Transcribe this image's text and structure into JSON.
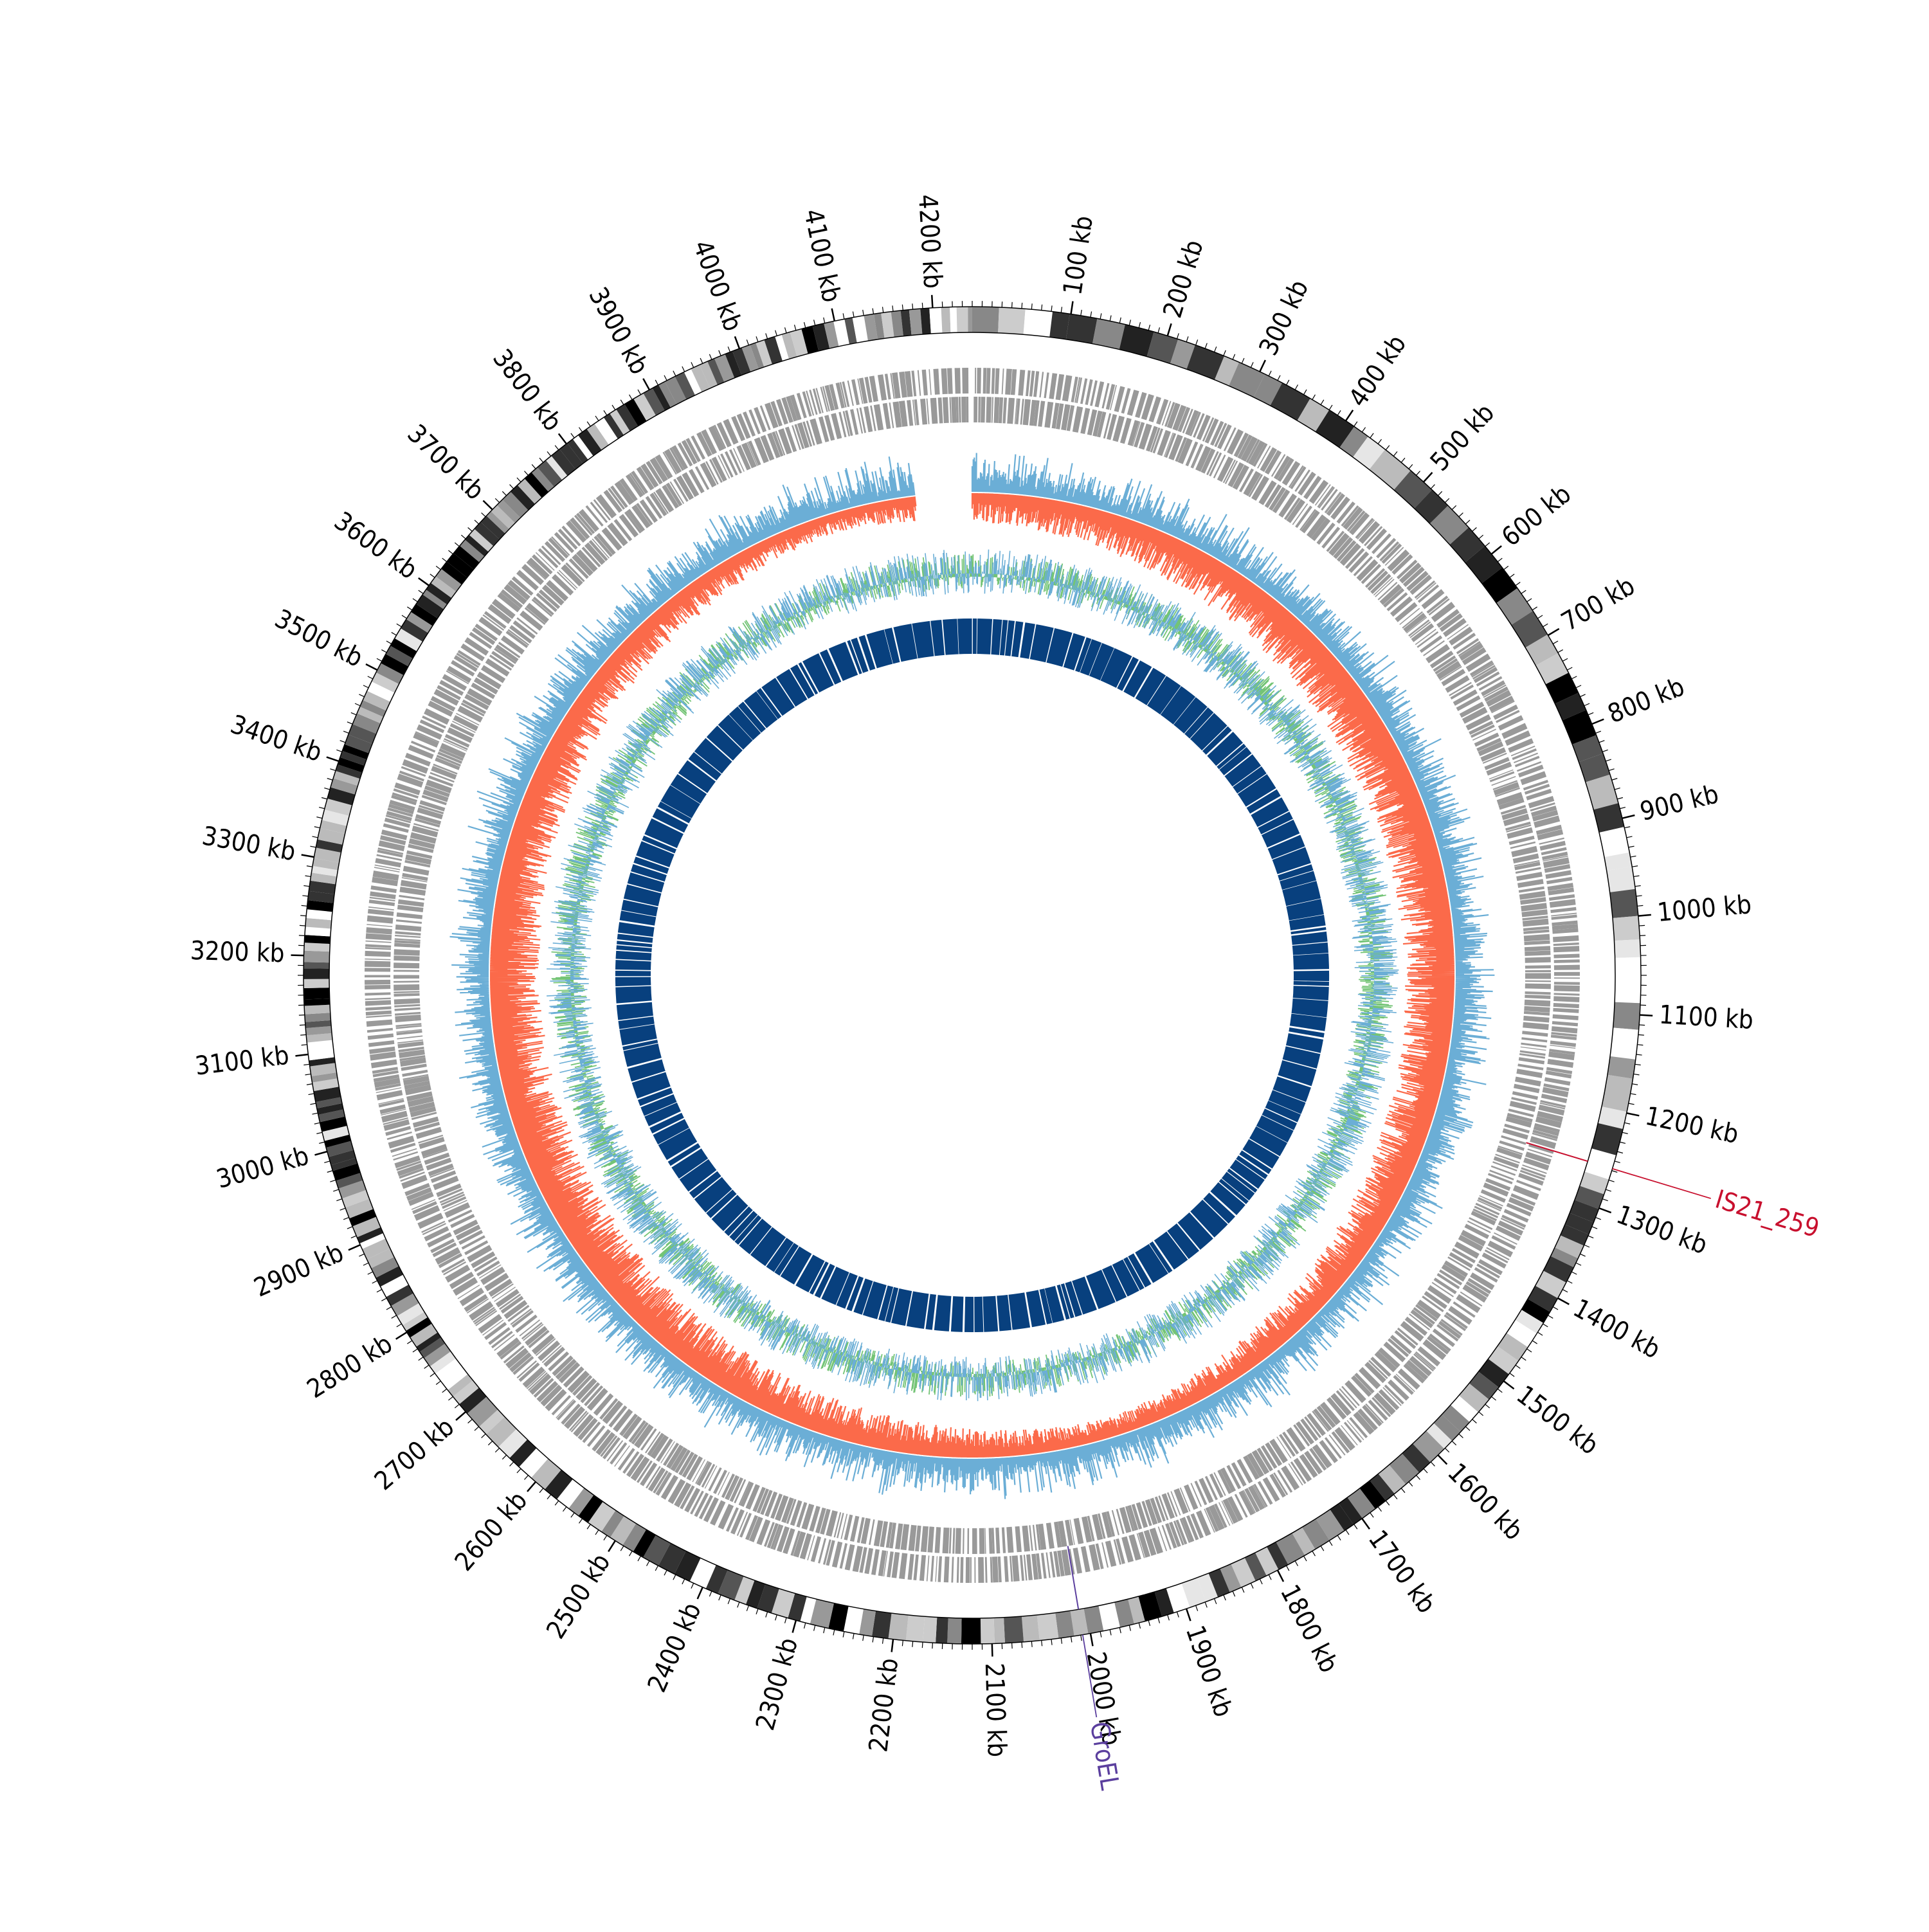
{
  "genome": {
    "size_kb": 4240,
    "tick_unit": "kb",
    "tick_labels": [
      "100 kb",
      "200 kb",
      "300 kb",
      "400 kb",
      "500 kb",
      "600 kb",
      "700 kb",
      "800 kb",
      "900 kb",
      "1000 kb",
      "1100 kb",
      "1200 kb",
      "1300 kb",
      "1400 kb",
      "1500 kb",
      "1600 kb",
      "1700 kb",
      "1800 kb",
      "1900 kb",
      "2000 kb",
      "2100 kb",
      "2200 kb",
      "2300 kb",
      "2400 kb",
      "2500 kb",
      "2600 kb",
      "2700 kb",
      "2800 kb",
      "2900 kb",
      "3000 kb",
      "3100 kb",
      "3200 kb",
      "3300 kb",
      "3400 kb",
      "3500 kb",
      "3600 kb",
      "3700 kb",
      "3800 kb",
      "3900 kb",
      "4000 kb",
      "4100 kb",
      "4200 kb"
    ],
    "tick_positions_kb": [
      100,
      200,
      300,
      400,
      500,
      600,
      700,
      800,
      900,
      1000,
      1100,
      1200,
      1300,
      1400,
      1500,
      1600,
      1700,
      1800,
      1900,
      2000,
      2100,
      2200,
      2300,
      2400,
      2500,
      2600,
      2700,
      2800,
      2900,
      3000,
      3100,
      3200,
      3300,
      3400,
      3500,
      3600,
      3700,
      3800,
      3900,
      4000,
      4100,
      4200
    ]
  },
  "annotations": [
    {
      "label": "IS21_259",
      "position_kb": 1258,
      "color": "#c8102e"
    },
    {
      "label": "GroEL",
      "position_kb": 2008,
      "color": "#5b3f9e"
    }
  ],
  "colors": {
    "ideogram_dark": "#000000",
    "ideogram_light": "#e6e6e6",
    "feature_track": "#999999",
    "skew_positive": "#6baed6",
    "skew_negative": "#fb6a4a",
    "gc_content": "#74c476",
    "gene_ring": "#08407e",
    "tick": "#000000"
  }
}
